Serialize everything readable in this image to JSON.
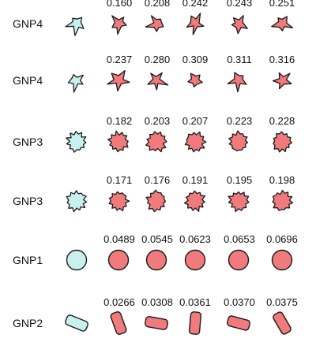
{
  "colors": {
    "query_fill": "#c8f0ee",
    "match_fill": "#f07a7c",
    "outline": "#1a1a1a"
  },
  "rows": [
    {
      "label": "GNP4",
      "query_shape": "spiky-star-icon",
      "match_shape": "spiky-star-icon",
      "scores": [
        "0.160",
        "0.208",
        "0.242",
        "0.243",
        "0.251"
      ]
    },
    {
      "label": "GNP4",
      "query_shape": "spiky-star-icon",
      "match_shape": "spiky-star-icon",
      "scores": [
        "0.237",
        "0.280",
        "0.309",
        "0.311",
        "0.316"
      ]
    },
    {
      "label": "GNP3",
      "query_shape": "bumpy-blob-icon",
      "match_shape": "bumpy-blob-icon",
      "scores": [
        "0.182",
        "0.203",
        "0.207",
        "0.223",
        "0.228"
      ]
    },
    {
      "label": "GNP3",
      "query_shape": "bumpy-blob-icon",
      "match_shape": "bumpy-blob-icon",
      "scores": [
        "0.171",
        "0.176",
        "0.191",
        "0.195",
        "0.198"
      ]
    },
    {
      "label": "GNP1",
      "query_shape": "circle-icon",
      "match_shape": "circle-icon",
      "scores": [
        "0.0489",
        "0.0545",
        "0.0623",
        "0.0653",
        "0.0696"
      ]
    },
    {
      "label": "GNP2",
      "query_shape": "rounded-rod-icon",
      "match_shape": "rounded-rod-icon",
      "scores": [
        "0.0266",
        "0.0308",
        "0.0361",
        "0.0370",
        "0.0375"
      ]
    }
  ]
}
